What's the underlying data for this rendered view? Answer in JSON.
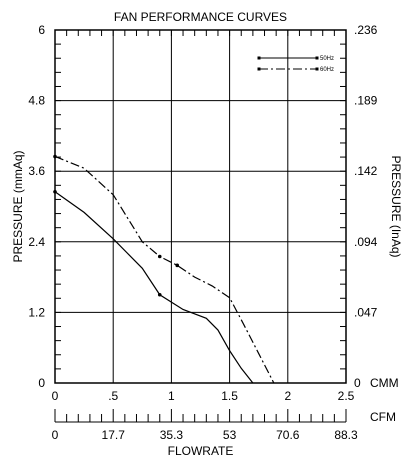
{
  "chart_data": {
    "type": "line",
    "title": "FAN PERFORMANCE CURVES",
    "xlabel": "FLOWRATE",
    "ylabel_left": "PRESSURE  (mmAq)",
    "ylabel_right": "PRESSURE  (InAq)",
    "x_unit_cmm": "CMM",
    "x_unit_cfm": "CFM",
    "xlim_cmm": [
      0,
      2.5
    ],
    "ylim_mmaq": [
      0,
      6
    ],
    "x_ticks_cmm": [
      "0",
      ".5",
      "1",
      "1.5",
      "2",
      "2.5"
    ],
    "x_ticks_cfm": [
      "0",
      "17.7",
      "35.3",
      "53",
      "70.6",
      "88.3"
    ],
    "y_ticks_left": [
      "0",
      "1.2",
      "2.4",
      "3.6",
      "4.8",
      "6"
    ],
    "y_ticks_right": [
      "0",
      ".047",
      ".094",
      ".142",
      ".189",
      ".236"
    ],
    "grid": true,
    "legend_position": "top-right",
    "series": [
      {
        "name": "50Hz",
        "style": "solid",
        "x": [
          0,
          0.25,
          0.5,
          0.75,
          0.9,
          1.1,
          1.3,
          1.4,
          1.5,
          1.6,
          1.7
        ],
        "y": [
          3.25,
          2.9,
          2.45,
          1.95,
          1.5,
          1.25,
          1.1,
          0.9,
          0.55,
          0.25,
          0
        ]
      },
      {
        "name": "60Hz",
        "style": "dash-dot",
        "x": [
          0,
          0.25,
          0.5,
          0.75,
          0.9,
          1.05,
          1.2,
          1.35,
          1.5,
          1.62,
          1.75,
          1.88
        ],
        "y": [
          3.85,
          3.65,
          3.2,
          2.4,
          2.15,
          2.0,
          1.8,
          1.65,
          1.45,
          1.0,
          0.5,
          0
        ]
      }
    ]
  }
}
